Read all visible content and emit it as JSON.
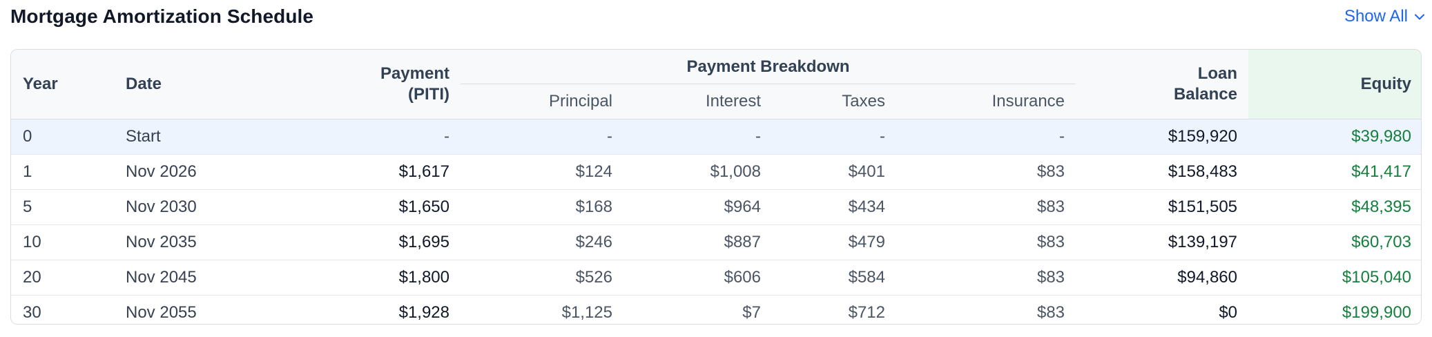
{
  "header": {
    "title": "Mortgage Amortization Schedule",
    "show_all_label": "Show All"
  },
  "columns": {
    "year": "Year",
    "date": "Date",
    "payment_line1": "Payment",
    "payment_line2": "(PITI)",
    "breakdown": "Payment Breakdown",
    "principal": "Principal",
    "interest": "Interest",
    "taxes": "Taxes",
    "insurance": "Insurance",
    "balance_line1": "Loan",
    "balance_line2": "Balance",
    "equity": "Equity"
  },
  "rows": [
    {
      "year": "0",
      "date": "Start",
      "payment": "-",
      "principal": "-",
      "interest": "-",
      "taxes": "-",
      "insurance": "-",
      "balance": "$159,920",
      "equity": "$39,980"
    },
    {
      "year": "1",
      "date": "Nov 2026",
      "payment": "$1,617",
      "principal": "$124",
      "interest": "$1,008",
      "taxes": "$401",
      "insurance": "$83",
      "balance": "$158,483",
      "equity": "$41,417"
    },
    {
      "year": "5",
      "date": "Nov 2030",
      "payment": "$1,650",
      "principal": "$168",
      "interest": "$964",
      "taxes": "$434",
      "insurance": "$83",
      "balance": "$151,505",
      "equity": "$48,395"
    },
    {
      "year": "10",
      "date": "Nov 2035",
      "payment": "$1,695",
      "principal": "$246",
      "interest": "$887",
      "taxes": "$479",
      "insurance": "$83",
      "balance": "$139,197",
      "equity": "$60,703"
    },
    {
      "year": "20",
      "date": "Nov 2045",
      "payment": "$1,800",
      "principal": "$526",
      "interest": "$606",
      "taxes": "$584",
      "insurance": "$83",
      "balance": "$94,860",
      "equity": "$105,040"
    },
    {
      "year": "30",
      "date": "Nov 2055",
      "payment": "$1,928",
      "principal": "$1,125",
      "interest": "$7",
      "taxes": "$712",
      "insurance": "$83",
      "balance": "$0",
      "equity": "$199,900"
    }
  ],
  "colors": {
    "accent": "#1d64f2",
    "equity_text": "#15803d",
    "equity_header_bg": "#eaf7ee",
    "start_row_bg": "#eef4fe"
  },
  "icons": {
    "show_all": "chevron-down-icon"
  }
}
